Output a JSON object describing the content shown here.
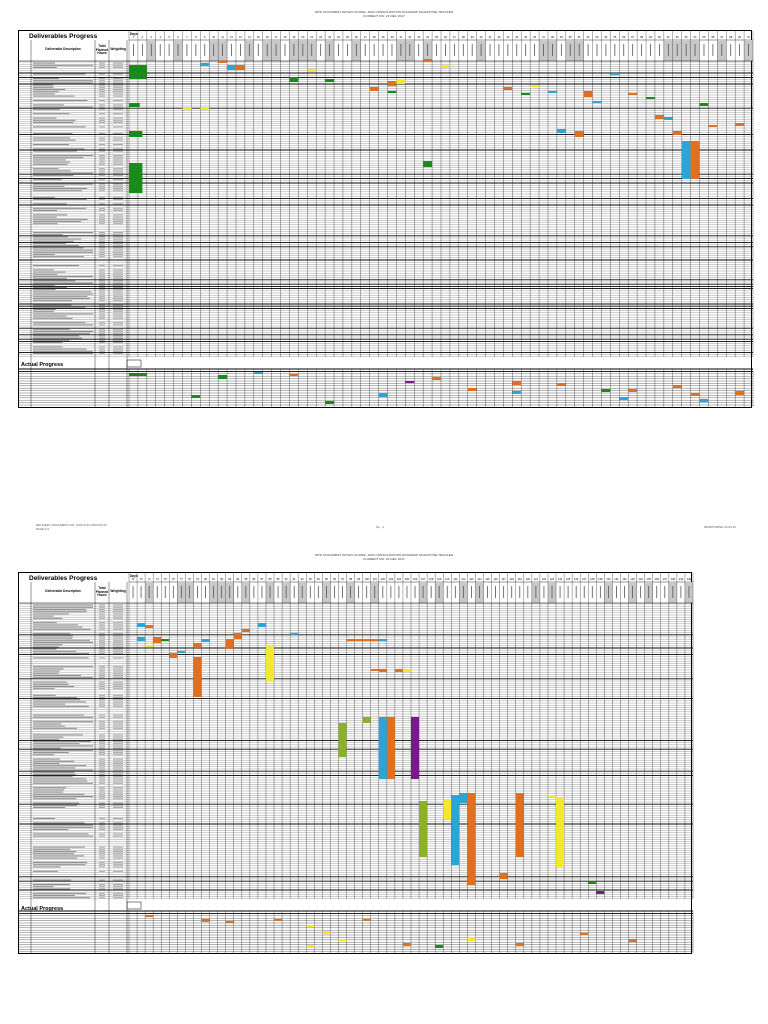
{
  "pages": [
    {
      "title_line1": "NPSI DOCUMENT WITHIN SCORE, 4000 CONSOLIDATION ROADMAP MILESTONE TRACKER",
      "title_line2": "CURRENT MS: 23 DEC 2017",
      "section_deliverables": "Deliverables Progress",
      "section_actual": "Actual Progress",
      "col_desc": "Deliverable Description",
      "col_planned": "Total Planned Hours",
      "col_weight": "Weighting",
      "days_label": "Days",
      "day_numbers": [
        "1",
        "2",
        "3",
        "4",
        "5",
        "6",
        "7",
        "8",
        "9",
        "10",
        "11",
        "12",
        "13",
        "14",
        "15",
        "16",
        "17",
        "18",
        "19",
        "20",
        "21",
        "22",
        "23",
        "24",
        "25",
        "26",
        "27",
        "28",
        "29",
        "30",
        "31",
        "32",
        "33",
        "34",
        "35",
        "36",
        "37",
        "38",
        "39",
        "40",
        "41",
        "42",
        "43",
        "44",
        "45",
        "46",
        "47",
        "48",
        "49",
        "50",
        "51",
        "52",
        "53",
        "54",
        "55",
        "56",
        "57",
        "58",
        "59",
        "60",
        "61",
        "62",
        "63",
        "64",
        "65",
        "66",
        "67",
        "68",
        "69",
        "70"
      ],
      "footer_left_1": "DELIVERY DOCUMENT NO. 1101-0712-0153 R4 00",
      "footer_left_2": "PAGE 1/1",
      "footer_center": "Sp - 1",
      "footer_right": "MONITORING 12.04.15"
    },
    {
      "title_line1": "NPSI DOCUMENT WITHIN SCORE, 4000 CONSOLIDATION ROADMAP MILESTONE TRACKER",
      "title_line2": "CURRENT MS: 23 DEC 2017",
      "section_deliverables": "Deliverables Progress",
      "section_actual": "Actual Progress",
      "col_desc": "Deliverable Description",
      "col_planned": "Total Planned Hours",
      "col_weight": "Weighting",
      "days_label": "Days",
      "day_numbers": [
        "71",
        "72",
        "73",
        "74",
        "75",
        "76",
        "77",
        "78",
        "79",
        "80",
        "81",
        "82",
        "83",
        "84",
        "85",
        "86",
        "87",
        "88",
        "89",
        "90",
        "91",
        "92",
        "93",
        "94",
        "95",
        "96",
        "97",
        "98",
        "99",
        "100",
        "101",
        "102",
        "103",
        "104",
        "105",
        "106",
        "107",
        "108",
        "109",
        "110",
        "111",
        "112",
        "113",
        "114",
        "115",
        "116",
        "117",
        "118",
        "119",
        "120",
        "121",
        "122",
        "123",
        "124",
        "125",
        "126",
        "127",
        "128",
        "129",
        "130",
        "131",
        "132",
        "133",
        "134",
        "135",
        "136",
        "137",
        "138",
        "139",
        "140"
      ]
    }
  ],
  "colors": {
    "green": "#1a8a1a",
    "blue": "#2aa5d8",
    "orange": "#e07020",
    "yellow": "#f2e830",
    "olive": "#8cb02a",
    "purple": "#7a1a8a",
    "grid": "#000000",
    "header_gray": "#c8c8c8"
  }
}
